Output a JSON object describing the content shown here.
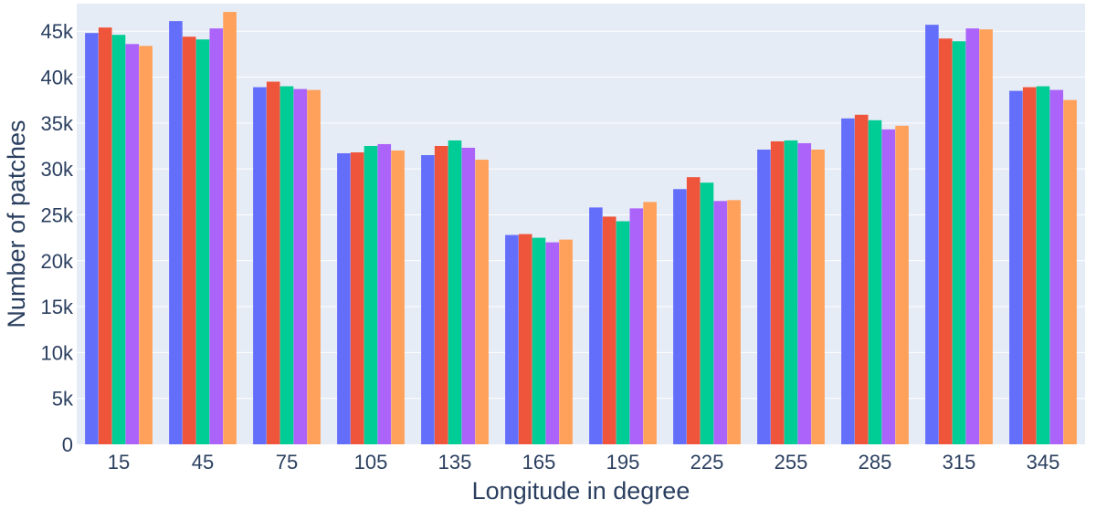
{
  "chart_data": {
    "type": "bar",
    "title": "",
    "xlabel": "Longitude in degree",
    "ylabel": "Number of patches",
    "categories": [
      "15",
      "45",
      "75",
      "105",
      "135",
      "165",
      "195",
      "225",
      "255",
      "285",
      "315",
      "345"
    ],
    "ylim": [
      0,
      48000
    ],
    "yticks": [
      0,
      5000,
      10000,
      15000,
      20000,
      25000,
      30000,
      35000,
      40000,
      45000
    ],
    "ytick_labels": [
      "0",
      "5k",
      "10k",
      "15k",
      "20k",
      "25k",
      "30k",
      "35k",
      "40k",
      "45k"
    ],
    "grid": true,
    "legend": "none",
    "background_color": "#E5ECF6",
    "series": [
      {
        "color": "#636EFA",
        "values": [
          44800,
          46100,
          38900,
          31700,
          31500,
          22800,
          25800,
          27800,
          32100,
          35500,
          45700,
          38500
        ]
      },
      {
        "color": "#EF553B",
        "values": [
          45400,
          44400,
          39500,
          31800,
          32500,
          22900,
          24800,
          29100,
          33000,
          35900,
          44200,
          38900
        ]
      },
      {
        "color": "#00CC96",
        "values": [
          44600,
          44100,
          39000,
          32500,
          33100,
          22500,
          24300,
          28500,
          33100,
          35300,
          43900,
          39000
        ]
      },
      {
        "color": "#AB63FA",
        "values": [
          43600,
          45300,
          38700,
          32700,
          32300,
          22000,
          25700,
          26500,
          32800,
          34300,
          45300,
          38600
        ]
      },
      {
        "color": "#FFA15A",
        "values": [
          43400,
          47100,
          38600,
          32000,
          31000,
          22300,
          26400,
          26600,
          32100,
          34700,
          45200,
          37500
        ]
      }
    ]
  }
}
